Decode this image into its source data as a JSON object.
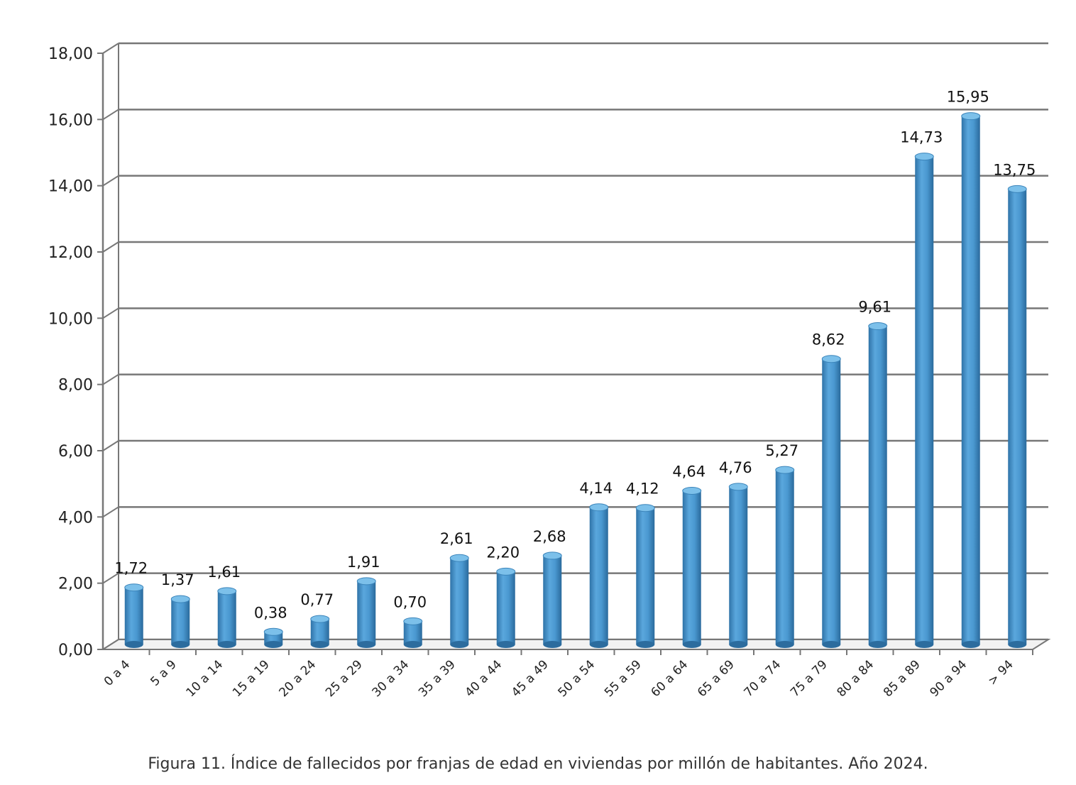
{
  "chart_data": {
    "type": "bar",
    "style": "3d-cylinder",
    "title": "",
    "xlabel": "",
    "ylabel": "",
    "ylim": [
      0,
      18
    ],
    "yticks": [
      "0,00",
      "2,00",
      "4,00",
      "6,00",
      "8,00",
      "10,00",
      "12,00",
      "14,00",
      "16,00",
      "18,00"
    ],
    "grid": true,
    "categories": [
      "0 a 4",
      "5 a 9",
      "10 a 14",
      "15 a 19",
      "20 a 24",
      "25 a 29",
      "30 a 34",
      "35 a 39",
      "40 a 44",
      "45 a 49",
      "50 a 54",
      "55 a 59",
      "60 a 64",
      "65 a 69",
      "70 a 74",
      "75 a 79",
      "80 a 84",
      "85 a 89",
      "90 a 94",
      "> 94"
    ],
    "values": [
      1.72,
      1.37,
      1.61,
      0.38,
      0.77,
      1.91,
      0.7,
      2.61,
      2.2,
      2.68,
      4.14,
      4.12,
      4.64,
      4.76,
      5.27,
      8.62,
      9.61,
      14.73,
      15.95,
      13.75
    ],
    "value_labels": [
      "1,72",
      "1,37",
      "1,61",
      "0,38",
      "0,77",
      "1,91",
      "0,70",
      "2,61",
      "2,20",
      "2,68",
      "4,14",
      "4,12",
      "4,64",
      "4,76",
      "5,27",
      "8,62",
      "9,61",
      "14,73",
      "15,95",
      "13,75"
    ],
    "bar_color": "#4a98d0",
    "grid_color": "#777777"
  },
  "caption": "Figura 11. Índice de fallecidos por franjas de edad en viviendas por millón de habitantes. Año 2024."
}
